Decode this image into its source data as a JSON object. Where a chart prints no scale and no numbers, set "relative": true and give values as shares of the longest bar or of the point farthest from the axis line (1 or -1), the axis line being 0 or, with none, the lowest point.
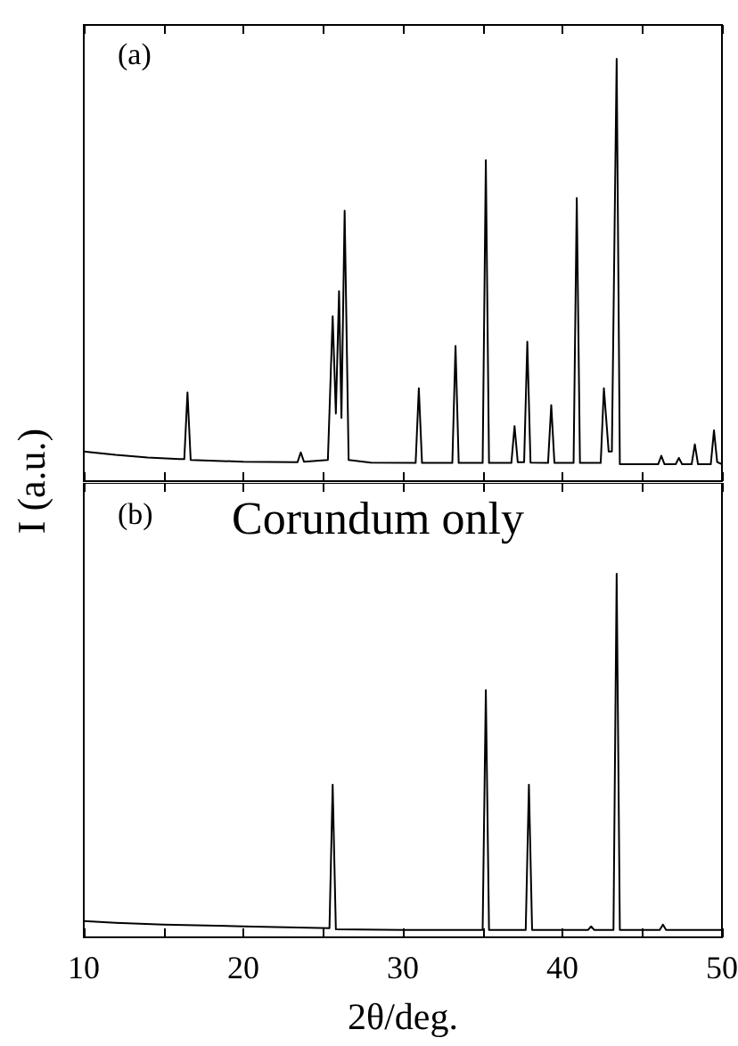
{
  "chart_data": [
    {
      "type": "line",
      "relative": true,
      "ylabel": "I (a.u.)",
      "annotations": [
        "(a)"
      ],
      "xlim": [
        10,
        50
      ],
      "xticks": [
        10,
        {
          "value": 15,
          "label": null
        },
        20,
        {
          "value": 25,
          "label": null
        },
        30,
        {
          "value": 35,
          "label": null
        },
        40,
        {
          "value": 45,
          "label": null
        },
        50
      ],
      "tick_labels": false,
      "marker": "none",
      "line_style": "solid",
      "series": [
        {
          "color": "#000000",
          "x": [
            10,
            12,
            14,
            16,
            16.3,
            16.5,
            16.7,
            20,
            23.4,
            23.6,
            23.8,
            25.3,
            25.6,
            25.8,
            26.0,
            26.15,
            26.35,
            26.6,
            28,
            30.8,
            31.0,
            31.2,
            33.1,
            33.3,
            33.5,
            35.0,
            35.2,
            35.4,
            36.8,
            37.0,
            37.2,
            37.6,
            37.8,
            38.0,
            39.1,
            39.3,
            39.5,
            40.7,
            40.9,
            41.1,
            42.4,
            42.6,
            42.9,
            43.1,
            43.4,
            43.6,
            46.0,
            46.2,
            46.4,
            47.1,
            47.3,
            47.5,
            48.1,
            48.3,
            48.5,
            49.3,
            49.5,
            49.7,
            50
          ],
          "values": [
            0.07,
            0.062,
            0.056,
            0.052,
            0.052,
            0.21,
            0.05,
            0.046,
            0.045,
            0.068,
            0.046,
            0.05,
            0.39,
            0.16,
            0.45,
            0.15,
            0.64,
            0.05,
            0.044,
            0.043,
            0.22,
            0.043,
            0.043,
            0.32,
            0.043,
            0.043,
            0.76,
            0.043,
            0.043,
            0.13,
            0.045,
            0.045,
            0.33,
            0.044,
            0.043,
            0.18,
            0.043,
            0.043,
            0.67,
            0.043,
            0.043,
            0.22,
            0.07,
            0.07,
            1.0,
            0.04,
            0.04,
            0.06,
            0.04,
            0.04,
            0.055,
            0.04,
            0.04,
            0.087,
            0.04,
            0.04,
            0.12,
            0.045,
            0.04
          ]
        }
      ]
    },
    {
      "type": "line",
      "relative": true,
      "xlabel": "2θ/deg.",
      "annotations": [
        "(b)",
        "Corundum only"
      ],
      "xlim": [
        10,
        50
      ],
      "xticks": [
        10,
        {
          "value": 15,
          "label": null
        },
        20,
        {
          "value": 25,
          "label": null
        },
        30,
        {
          "value": 35,
          "label": null
        },
        40,
        {
          "value": 45,
          "label": null
        },
        50
      ],
      "tick_labels": "x",
      "marker": "none",
      "line_style": "solid",
      "series": [
        {
          "color": "#000000",
          "x": [
            10,
            12,
            15,
            20,
            25.4,
            25.6,
            25.8,
            30,
            35.0,
            35.2,
            35.4,
            37.7,
            37.9,
            38.1,
            41.6,
            41.8,
            42.0,
            43.2,
            43.4,
            43.6,
            46.1,
            46.3,
            46.5,
            50
          ],
          "values": [
            0.045,
            0.04,
            0.035,
            0.03,
            0.025,
            0.42,
            0.022,
            0.02,
            0.02,
            0.68,
            0.02,
            0.02,
            0.42,
            0.02,
            0.02,
            0.03,
            0.02,
            0.02,
            1.0,
            0.02,
            0.02,
            0.035,
            0.02,
            0.02
          ]
        }
      ]
    }
  ]
}
